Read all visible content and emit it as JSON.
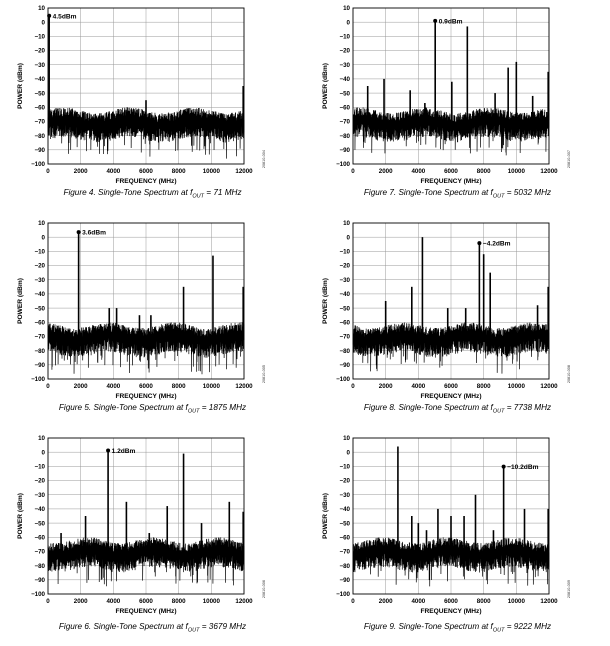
{
  "figures": [
    {
      "caption": "Figure 4. Single-Tone Spectrum at fOUT = 71 MHz",
      "caption_prefix": "Figure 4. Single-Tone Spectrum at f",
      "caption_sub": "OUT",
      "caption_suffix": " = 71 MHz",
      "side_code": "20810-004",
      "chart_data": {
        "type": "line",
        "xlabel": "FREQUENCY (MHz)",
        "ylabel": "POWER (dBm)",
        "xlim": [
          0,
          12000
        ],
        "ylim": [
          -100,
          10
        ],
        "x_ticks": [
          "0",
          "2000",
          "4000",
          "6000",
          "8000",
          "10000",
          "12000"
        ],
        "y_ticks": [
          "10",
          "0",
          "−10",
          "−20",
          "−30",
          "−40",
          "−50",
          "−60",
          "−70",
          "−80",
          "−90",
          "−100"
        ],
        "grid": true,
        "noise_floor_dbm": -70,
        "tones": [
          {
            "x": 71,
            "y": 4.5
          },
          {
            "x": 6000,
            "y": -55
          },
          {
            "x": 11950,
            "y": -45
          }
        ],
        "marker": {
          "x": 71,
          "y": 4.5,
          "label": "4.5dBm"
        }
      }
    },
    {
      "caption": "Figure 7. Single-Tone Spectrum at fOUT = 5032 MHz",
      "caption_prefix": "Figure 7. Single-Tone Spectrum at f",
      "caption_sub": "OUT",
      "caption_suffix": " = 5032 MHz",
      "side_code": "20810-007",
      "chart_data": {
        "type": "line",
        "xlabel": "FREQUENCY (MHz)",
        "ylabel": "POWER (dBm)",
        "xlim": [
          0,
          12000
        ],
        "ylim": [
          -100,
          10
        ],
        "x_ticks": [
          "0",
          "2000",
          "4000",
          "6000",
          "8000",
          "10000",
          "12000"
        ],
        "y_ticks": [
          "10",
          "0",
          "−10",
          "−20",
          "−30",
          "−40",
          "−50",
          "−60",
          "−70",
          "−80",
          "−90",
          "−100"
        ],
        "grid": true,
        "noise_floor_dbm": -70,
        "tones": [
          {
            "x": 900,
            "y": -45
          },
          {
            "x": 1900,
            "y": -40
          },
          {
            "x": 3500,
            "y": -48
          },
          {
            "x": 4400,
            "y": -57
          },
          {
            "x": 5032,
            "y": 0.9
          },
          {
            "x": 6050,
            "y": -42
          },
          {
            "x": 7000,
            "y": -3
          },
          {
            "x": 8700,
            "y": -50
          },
          {
            "x": 9500,
            "y": -32
          },
          {
            "x": 10000,
            "y": -28
          },
          {
            "x": 11000,
            "y": -52
          },
          {
            "x": 11950,
            "y": -35
          }
        ],
        "marker": {
          "x": 5032,
          "y": 0.9,
          "label": "0.9dBm"
        }
      }
    },
    {
      "caption": "Figure 5. Single-Tone Spectrum at fOUT = 1875 MHz",
      "caption_prefix": "Figure 5. Single-Tone Spectrum at f",
      "caption_sub": "OUT",
      "caption_suffix": " = 1875 MHz",
      "side_code": "20810-005",
      "chart_data": {
        "type": "line",
        "xlabel": "FREQUENCY (MHz)",
        "ylabel": "POWER (dBm)",
        "xlim": [
          0,
          12000
        ],
        "ylim": [
          -100,
          10
        ],
        "x_ticks": [
          "0",
          "2000",
          "4000",
          "6000",
          "8000",
          "10000",
          "12000"
        ],
        "y_ticks": [
          "10",
          "0",
          "−10",
          "−20",
          "−30",
          "−40",
          "−50",
          "−60",
          "−70",
          "−80",
          "−90",
          "−100"
        ],
        "grid": true,
        "noise_floor_dbm": -70,
        "tones": [
          {
            "x": 1875,
            "y": 3.6
          },
          {
            "x": 3750,
            "y": -50
          },
          {
            "x": 4200,
            "y": -50
          },
          {
            "x": 5600,
            "y": -55
          },
          {
            "x": 6300,
            "y": -55
          },
          {
            "x": 8300,
            "y": -35
          },
          {
            "x": 10100,
            "y": -13
          },
          {
            "x": 11950,
            "y": -35
          }
        ],
        "marker": {
          "x": 1875,
          "y": 3.6,
          "label": "3.6dBm"
        }
      }
    },
    {
      "caption": "Figure 8. Single-Tone Spectrum at fOUT = 7738 MHz",
      "caption_prefix": "Figure 8. Single-Tone Spectrum at f",
      "caption_sub": "OUT",
      "caption_suffix": " = 7738 MHz",
      "side_code": "20810-008",
      "chart_data": {
        "type": "line",
        "xlabel": "FREQUENCY (MHz)",
        "ylabel": "POWER (dBm)",
        "xlim": [
          0,
          12000
        ],
        "ylim": [
          -100,
          10
        ],
        "x_ticks": [
          "0",
          "2000",
          "4000",
          "6000",
          "8000",
          "10000",
          "12000"
        ],
        "y_ticks": [
          "10",
          "0",
          "−10",
          "−20",
          "−30",
          "−40",
          "−50",
          "−60",
          "−70",
          "−80",
          "−90",
          "−100"
        ],
        "grid": true,
        "noise_floor_dbm": -70,
        "tones": [
          {
            "x": 2000,
            "y": -45
          },
          {
            "x": 3600,
            "y": -35
          },
          {
            "x": 4250,
            "y": 0
          },
          {
            "x": 5800,
            "y": -50
          },
          {
            "x": 6900,
            "y": -50
          },
          {
            "x": 7738,
            "y": -4.2
          },
          {
            "x": 8000,
            "y": -12
          },
          {
            "x": 8400,
            "y": -25
          },
          {
            "x": 11300,
            "y": -48
          },
          {
            "x": 11950,
            "y": -35
          }
        ],
        "marker": {
          "x": 7738,
          "y": -4.2,
          "label": "−4.2dBm"
        }
      }
    },
    {
      "caption": "Figure 6. Single-Tone Spectrum at fOUT = 3679 MHz",
      "caption_prefix": "Figure 6. Single-Tone Spectrum at f",
      "caption_sub": "OUT",
      "caption_suffix": " = 3679 MHz",
      "side_code": "20810-006",
      "chart_data": {
        "type": "line",
        "xlabel": "FREQUENCY (MHz)",
        "ylabel": "POWER (dBm)",
        "xlim": [
          0,
          12000
        ],
        "ylim": [
          -100,
          10
        ],
        "x_ticks": [
          "0",
          "2000",
          "4000",
          "6000",
          "8000",
          "10000",
          "12000"
        ],
        "y_ticks": [
          "10",
          "0",
          "−10",
          "−20",
          "−30",
          "−40",
          "−50",
          "−60",
          "−70",
          "−80",
          "−90",
          "−100"
        ],
        "grid": true,
        "noise_floor_dbm": -70,
        "tones": [
          {
            "x": 800,
            "y": -57
          },
          {
            "x": 2300,
            "y": -45
          },
          {
            "x": 3679,
            "y": 1.2
          },
          {
            "x": 4800,
            "y": -35
          },
          {
            "x": 6200,
            "y": -57
          },
          {
            "x": 7300,
            "y": -38
          },
          {
            "x": 8300,
            "y": -1
          },
          {
            "x": 9400,
            "y": -50
          },
          {
            "x": 11100,
            "y": -35
          },
          {
            "x": 11950,
            "y": -42
          }
        ],
        "marker": {
          "x": 3679,
          "y": 1.2,
          "label": "1.2dBm"
        }
      }
    },
    {
      "caption": "Figure 9. Single-Tone Spectrum at fOUT = 9222 MHz",
      "caption_prefix": "Figure 9. Single-Tone Spectrum at f",
      "caption_sub": "OUT",
      "caption_suffix": " = 9222 MHz",
      "side_code": "20810-009",
      "chart_data": {
        "type": "line",
        "xlabel": "FREQUENCY (MHz)",
        "ylabel": "POWER (dBm)",
        "xlim": [
          0,
          12000
        ],
        "ylim": [
          -100,
          10
        ],
        "x_ticks": [
          "0",
          "2000",
          "4000",
          "6000",
          "8000",
          "10000",
          "12000"
        ],
        "y_ticks": [
          "10",
          "0",
          "−10",
          "−20",
          "−30",
          "−40",
          "−50",
          "−60",
          "−70",
          "−80",
          "−90",
          "−100"
        ],
        "grid": true,
        "noise_floor_dbm": -70,
        "tones": [
          {
            "x": 2750,
            "y": 4
          },
          {
            "x": 3600,
            "y": -45
          },
          {
            "x": 4000,
            "y": -50
          },
          {
            "x": 4500,
            "y": -55
          },
          {
            "x": 5200,
            "y": -40
          },
          {
            "x": 6000,
            "y": -45
          },
          {
            "x": 6800,
            "y": -45
          },
          {
            "x": 7500,
            "y": -30
          },
          {
            "x": 8600,
            "y": -55
          },
          {
            "x": 9222,
            "y": -10.2
          },
          {
            "x": 10500,
            "y": -40
          },
          {
            "x": 11950,
            "y": -40
          }
        ],
        "marker": {
          "x": 9222,
          "y": -10.2,
          "label": "−10.2dBm"
        }
      }
    }
  ]
}
